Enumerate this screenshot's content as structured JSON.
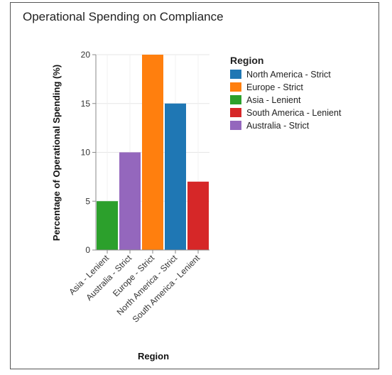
{
  "chart_data": {
    "type": "bar",
    "title": "Operational Spending on Compliance",
    "xlabel": "Region",
    "ylabel": "Percentage of Operational Spending (%)",
    "ylim": [
      0,
      20
    ],
    "yticks": [
      0,
      5,
      10,
      15,
      20
    ],
    "grid": true,
    "legend_position": "right",
    "categories": [
      "Asia - Lenient",
      "Australia - Strict",
      "Europe - Strict",
      "North America - Strict",
      "South America - Lenient"
    ],
    "values": [
      5,
      10,
      20,
      15,
      7
    ],
    "colors": [
      "#2ca02c",
      "#9467bd",
      "#ff7f0e",
      "#1f77b4",
      "#d62728"
    ],
    "legend": {
      "title": "Region",
      "items": [
        {
          "label": "North America - Strict",
          "color": "#1f77b4"
        },
        {
          "label": "Europe - Strict",
          "color": "#ff7f0e"
        },
        {
          "label": "Asia - Lenient",
          "color": "#2ca02c"
        },
        {
          "label": "South America - Lenient",
          "color": "#d62728"
        },
        {
          "label": "Australia - Strict",
          "color": "#9467bd"
        }
      ]
    }
  }
}
